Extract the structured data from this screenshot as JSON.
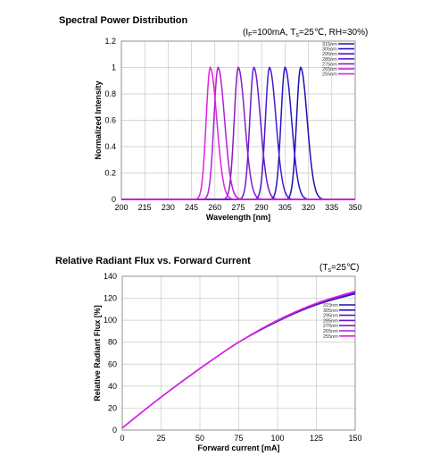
{
  "charts": [
    {
      "title": "Spectral Power Distribution",
      "condition": {
        "open": "(I",
        "s1": "F",
        "mid": "=100mA, T",
        "s2": "s",
        "close": "=25℃, RH=30%)"
      }
    },
    {
      "title": "Relative Radiant Flux vs. Forward Current",
      "condition": {
        "open": "(T",
        "s1": "s",
        "close": "=25℃)"
      }
    }
  ],
  "chart_data": [
    {
      "type": "line",
      "title": "Spectral Power Distribution",
      "xlabel": "Wavelength [nm]",
      "ylabel": "Normalized Intensity",
      "xlim": [
        200,
        350
      ],
      "ylim": [
        0,
        1.2
      ],
      "xticks": [
        "200",
        "215",
        "230",
        "245",
        "260",
        "275",
        "290",
        "305",
        "320",
        "335",
        "350"
      ],
      "yticks": [
        "0",
        "0.2",
        "0.4",
        "0.6",
        "0.8",
        "1",
        "1.2"
      ],
      "grid": true,
      "legend_position": "top-right",
      "series": [
        {
          "name": "315nm",
          "peak": 315,
          "color": "#1a10b4"
        },
        {
          "name": "305nm",
          "peak": 305,
          "color": "#2a14c8"
        },
        {
          "name": "295nm",
          "peak": 295,
          "color": "#4a18d0"
        },
        {
          "name": "285nm",
          "peak": 285,
          "color": "#6a1cc8"
        },
        {
          "name": "275nm",
          "peak": 275,
          "color": "#8a1cc8"
        },
        {
          "name": "265nm",
          "peak": 262,
          "color": "#b41ed8"
        },
        {
          "name": "255nm",
          "peak": 257,
          "color": "#e020e0"
        }
      ]
    },
    {
      "type": "line",
      "title": "Relative Radiant Flux vs. Forward Current",
      "xlabel": "Forward current [mA]",
      "ylabel": "Relative Radiant Flux [%]",
      "xlim": [
        0,
        150
      ],
      "ylim": [
        0,
        140
      ],
      "xticks": [
        "0",
        "25",
        "50",
        "75",
        "100",
        "125",
        "150"
      ],
      "yticks": [
        "0",
        "20",
        "40",
        "60",
        "80",
        "100",
        "120",
        "140"
      ],
      "grid": true,
      "legend_position": "right",
      "x": [
        0,
        25,
        50,
        75,
        100,
        125,
        150
      ],
      "series": [
        {
          "name": "315nm",
          "color": "#1a10b4",
          "values": [
            2,
            30,
            56,
            80,
            99,
            114,
            124
          ]
        },
        {
          "name": "305nm",
          "color": "#2a14c8",
          "values": [
            2,
            30,
            56,
            80,
            99,
            114,
            124.5
          ]
        },
        {
          "name": "295nm",
          "color": "#4a18d0",
          "values": [
            2,
            30,
            56,
            80,
            99,
            114.5,
            125
          ]
        },
        {
          "name": "285nm",
          "color": "#6a1cc8",
          "values": [
            2,
            30,
            56,
            80,
            99.5,
            115,
            125.5
          ]
        },
        {
          "name": "275nm",
          "color": "#8a1cc8",
          "values": [
            2,
            30,
            56,
            80,
            99.5,
            115,
            126
          ]
        },
        {
          "name": "265nm",
          "color": "#b41ed8",
          "values": [
            2,
            30,
            56,
            80,
            100,
            115.5,
            126
          ]
        },
        {
          "name": "255nm",
          "color": "#e020e0",
          "values": [
            2,
            30,
            56,
            80,
            100,
            115.5,
            126.5
          ]
        }
      ]
    }
  ]
}
